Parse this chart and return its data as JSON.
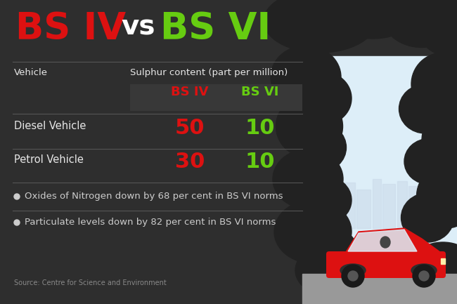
{
  "bg_color": "#2e2e2e",
  "title_bs4": "BS IV",
  "title_vs": "vs",
  "title_bs6": "BS VI",
  "bs4_color": "#dd1111",
  "bs6_color": "#66cc11",
  "vs_color": "#ffffff",
  "header_vehicle": "Vehicle",
  "header_sulphur": "Sulphur content (part per million)",
  "col_bs4": "BS IV",
  "col_bs6": "BS VI",
  "row1_label": "Diesel Vehicle",
  "row1_bs4": "50",
  "row1_bs6": "10",
  "row2_label": "Petrol Vehicle",
  "row2_bs4": "30",
  "row2_bs6": "10",
  "bullet1": "Oxides of Nitrogen down by 68 per cent in BS VI norms",
  "bullet2": "Particulate levels down by 82 per cent in BS VI norms",
  "source": "Source: Centre for Science and Environment",
  "text_color": "#e8e8e8",
  "bullet_color": "#cccccc",
  "source_color": "#888888",
  "line_color": "#555555",
  "smoke_color": "#222222",
  "sky_color": "#ddeef8",
  "car_body_color": "#dd1111",
  "car_window_color": "#ddeef8",
  "road_color": "#999999",
  "city_color": "#c8d8e8",
  "col_header_bg": "#333333",
  "fig_w": 6.5,
  "fig_h": 4.33,
  "dpi": 100
}
